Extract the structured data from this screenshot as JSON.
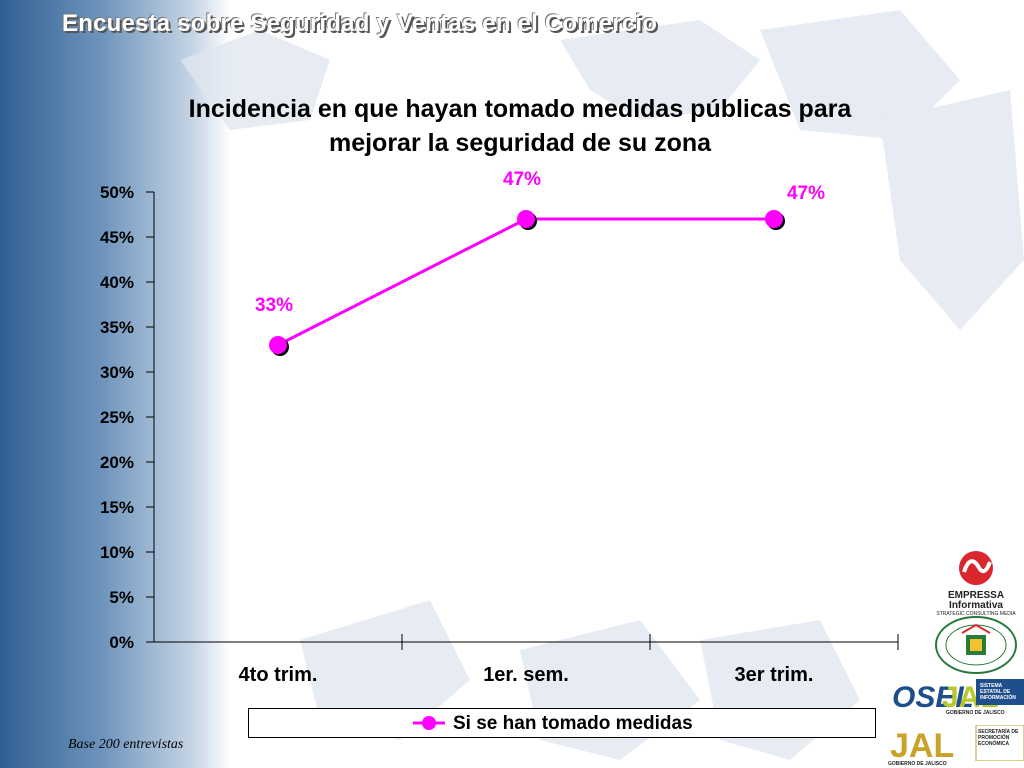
{
  "slide": {
    "header": "Encuesta sobre Seguridad y Ventas en el Comercio",
    "title_line1": "Incidencia en que hayan tomado medidas públicas para",
    "title_line2": "mejorar la seguridad de su zona",
    "footnote": "Base 200 entrevistas"
  },
  "chart_data": {
    "type": "line",
    "title": "Incidencia en que hayan tomado medidas públicas para mejorar la seguridad de su zona",
    "categories": [
      "4to trim.",
      "1er. sem.",
      "3er trim."
    ],
    "series": [
      {
        "name": "Si se han tomado medidas",
        "values": [
          33,
          47,
          47
        ],
        "labels": [
          "33%",
          "47%",
          "47%"
        ],
        "color": "#ff00ff"
      }
    ],
    "ylim": [
      0,
      50
    ],
    "yticks": [
      0,
      5,
      10,
      15,
      20,
      25,
      30,
      35,
      40,
      45,
      50
    ],
    "ytick_labels": [
      "0%",
      "5%",
      "10%",
      "15%",
      "20%",
      "25%",
      "30%",
      "35%",
      "40%",
      "45%",
      "50%"
    ],
    "grid": false,
    "legend": "bottom"
  },
  "logos": {
    "empressa_name": "EMPRESSA",
    "empressa_sub": "Informativa",
    "empressa_tag": "STRATEGIC CONSULTING MEDIA",
    "camara_text": "CAMARA DE COMERCIO DE GUADALAJARA",
    "osel": "OSEL",
    "jal": "JAL",
    "sistema": "SISTEMA ESTATAL DE INFORMACIÓN",
    "gobierno_jalisco_1": "GOBIERNO DE JALISCO",
    "secretaria": "SECRETARÍA DE PROMOCIÓN ECONÓMICA",
    "gobierno_jalisco_2": "GOBIERNO DE JALISCO"
  },
  "colors": {
    "series": "#ff00ff",
    "label": "#ff00ff",
    "header_text": "#ffffff",
    "sidebar": "#2f5f92"
  }
}
